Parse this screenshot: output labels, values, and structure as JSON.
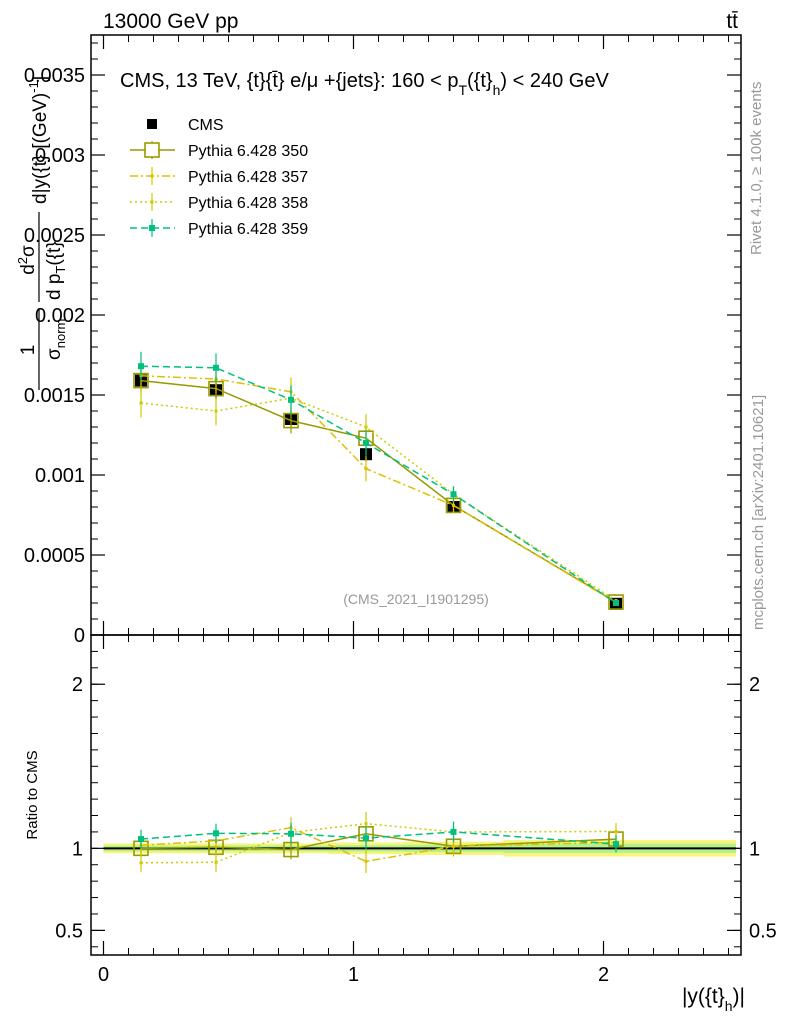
{
  "header": {
    "energy_label": "13000 GeV pp",
    "process_label": "tt̄",
    "side_rivet": "Rivet 4.1.0, ≥ 100k events",
    "side_source": "mcplots.cern.ch [arXiv:2401.10621]"
  },
  "chart_data": {
    "type": "line",
    "title": "CMS, 13 TeV, {t}{t̄} e/μ +{jets}: 160 <  p_T({t}_h) < 240 GeV",
    "title_main": "CMS, 13 TeV, {t}{t̄} e/μ +{jets}: 160 <  p",
    "title_sub1": "T",
    "title_mid": "({t}",
    "title_sub2": "h",
    "title_end": ") < 240 GeV",
    "analysis_id": "(CMS_2021_I1901295)",
    "ylabel": "1/σ_norm d²σ / d p_T({t}_h) d|y({t}_h)| [(GeV)^-1]",
    "ylabel_parts": {
      "frac1_num": "1",
      "frac1_den": "σ",
      "frac1_den_sub": "norm",
      "frac2_num": "d",
      "frac2_num_sup": "2",
      "frac2_num_tail": "σ",
      "frac2_den": "d p",
      "frac2_den_sub": "T",
      "frac2_den_tail": "({t}",
      "tail": "d|y({t}",
      "unit": "[(GeV)",
      "unit_sup": "-1",
      "unit_close": "]"
    },
    "xlabel": "|y({t}_h)|",
    "xlabel_main": "|y({t}",
    "xlabel_sub": "h",
    "xlabel_close": ")|",
    "ratio_ylabel": "Ratio to CMS",
    "x_range": [
      -0.05,
      2.55
    ],
    "y_range": [
      0,
      0.00375
    ],
    "ratio_range": [
      0.35,
      2.3
    ],
    "x_ticks": [
      0,
      1,
      2
    ],
    "x_tick_labels": [
      "0",
      "1",
      "2"
    ],
    "y_ticks": [
      0,
      0.0005,
      0.001,
      0.0015,
      0.002,
      0.0025,
      0.003,
      0.0035
    ],
    "y_tick_labels": [
      "0",
      "0.0005",
      "0.001",
      "0.0015",
      "0.002",
      "0.0025",
      "0.003",
      "0.0035"
    ],
    "ratio_ticks": [
      0.5,
      1,
      2
    ],
    "ratio_tick_labels": [
      "0.5",
      "1",
      "2"
    ],
    "bins": [
      [
        0,
        0.3
      ],
      [
        0.3,
        0.6
      ],
      [
        0.6,
        0.9
      ],
      [
        0.9,
        1.2
      ],
      [
        1.2,
        1.6
      ],
      [
        1.6,
        2.5
      ]
    ],
    "x": [
      0.15,
      0.45,
      0.75,
      1.05,
      1.4,
      2.05
    ],
    "series": [
      {
        "name": "CMS",
        "color": "#000000",
        "style": "data",
        "values": [
          0.00159,
          0.00153,
          0.00135,
          0.00113,
          0.0008,
          0.000195
        ],
        "errors": [
          5e-05,
          5e-05,
          4e-05,
          4e-05,
          3e-05,
          1e-05
        ]
      },
      {
        "name": "Pythia 6.428 350",
        "color": "#999900",
        "style": "solid",
        "values": [
          0.00159,
          0.00154,
          0.00134,
          0.00123,
          0.00081,
          0.000206
        ],
        "errors": [
          8e-05,
          8e-05,
          8e-05,
          7e-05,
          4e-05,
          1e-05
        ]
      },
      {
        "name": "Pythia 6.428 357",
        "color": "#dec000",
        "style": "dashdot",
        "values": [
          0.00162,
          0.0016,
          0.00152,
          0.00104,
          0.00081,
          0.000202
        ],
        "errors": [
          9e-05,
          9e-05,
          9e-05,
          8e-05,
          5e-05,
          1e-05
        ]
      },
      {
        "name": "Pythia 6.428 358",
        "color": "#cccc00",
        "style": "dotted",
        "values": [
          0.00145,
          0.0014,
          0.00148,
          0.0013,
          0.00088,
          0.000215
        ],
        "errors": [
          9e-05,
          9e-05,
          9e-05,
          8e-05,
          5e-05,
          1e-05
        ]
      },
      {
        "name": "Pythia 6.428 359",
        "color": "#00c080",
        "style": "dashed",
        "values": [
          0.00168,
          0.00167,
          0.00147,
          0.0012,
          0.00088,
          0.0002
        ],
        "errors": [
          9e-05,
          9e-05,
          9e-05,
          8e-05,
          5e-05,
          1e-05
        ]
      }
    ],
    "ratio_band_errors": [
      0.03,
      0.03,
      0.03,
      0.035,
      0.04,
      0.05
    ]
  }
}
